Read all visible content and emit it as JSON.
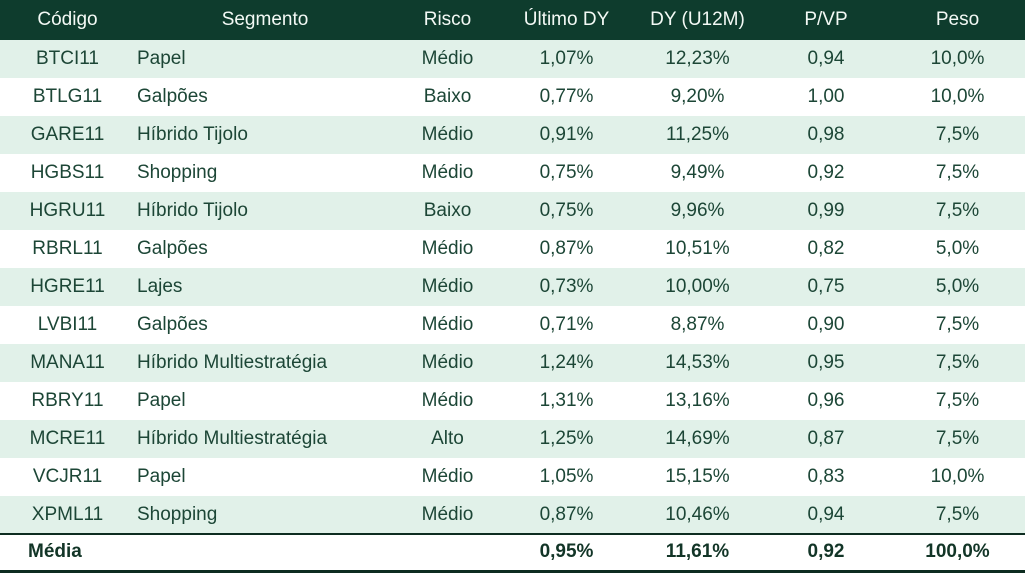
{
  "chart_data": {
    "type": "table",
    "title": "",
    "columns": [
      "Código",
      "Segmento",
      "Risco",
      "Último DY",
      "DY (U12M)",
      "P/VP",
      "Peso"
    ],
    "rows": [
      [
        "BTCI11",
        "Papel",
        "Médio",
        "1,07%",
        "12,23%",
        "0,94",
        "10,0%"
      ],
      [
        "BTLG11",
        "Galpões",
        "Baixo",
        "0,77%",
        "9,20%",
        "1,00",
        "10,0%"
      ],
      [
        "GARE11",
        "Híbrido Tijolo",
        "Médio",
        "0,91%",
        "11,25%",
        "0,98",
        "7,5%"
      ],
      [
        "HGBS11",
        "Shopping",
        "Médio",
        "0,75%",
        "9,49%",
        "0,92",
        "7,5%"
      ],
      [
        "HGRU11",
        "Híbrido Tijolo",
        "Baixo",
        "0,75%",
        "9,96%",
        "0,99",
        "7,5%"
      ],
      [
        "RBRL11",
        "Galpões",
        "Médio",
        "0,87%",
        "10,51%",
        "0,82",
        "5,0%"
      ],
      [
        "HGRE11",
        "Lajes",
        "Médio",
        "0,73%",
        "10,00%",
        "0,75",
        "5,0%"
      ],
      [
        "LVBI11",
        "Galpões",
        "Médio",
        "0,71%",
        "8,87%",
        "0,90",
        "7,5%"
      ],
      [
        "MANA11",
        "Híbrido Multiestratégia",
        "Médio",
        "1,24%",
        "14,53%",
        "0,95",
        "7,5%"
      ],
      [
        "RBRY11",
        "Papel",
        "Médio",
        "1,31%",
        "13,16%",
        "0,96",
        "7,5%"
      ],
      [
        "MCRE11",
        "Híbrido Multiestratégia",
        "Alto",
        "1,25%",
        "14,69%",
        "0,87",
        "7,5%"
      ],
      [
        "VCJR11",
        "Papel",
        "Médio",
        "1,05%",
        "15,15%",
        "0,83",
        "10,0%"
      ],
      [
        "XPML11",
        "Shopping",
        "Médio",
        "0,87%",
        "10,46%",
        "0,94",
        "7,5%"
      ]
    ],
    "footer": [
      "Média",
      "",
      "",
      "0,95%",
      "11,61%",
      "0,92",
      "100,0%"
    ],
    "layout_hints": {
      "row_striping": "odd rows mint, even rows white",
      "footer_style": "bold with top and bottom rules"
    }
  },
  "colors": {
    "header_bg": "#0E3C2D",
    "header_text": "#F3F9F5",
    "row_alt_bg": "#E1F1E9",
    "row_bg": "#FFFFFF",
    "body_text": "#1C4636",
    "footer_text": "#123527",
    "rule_border": "#0D2C20"
  }
}
